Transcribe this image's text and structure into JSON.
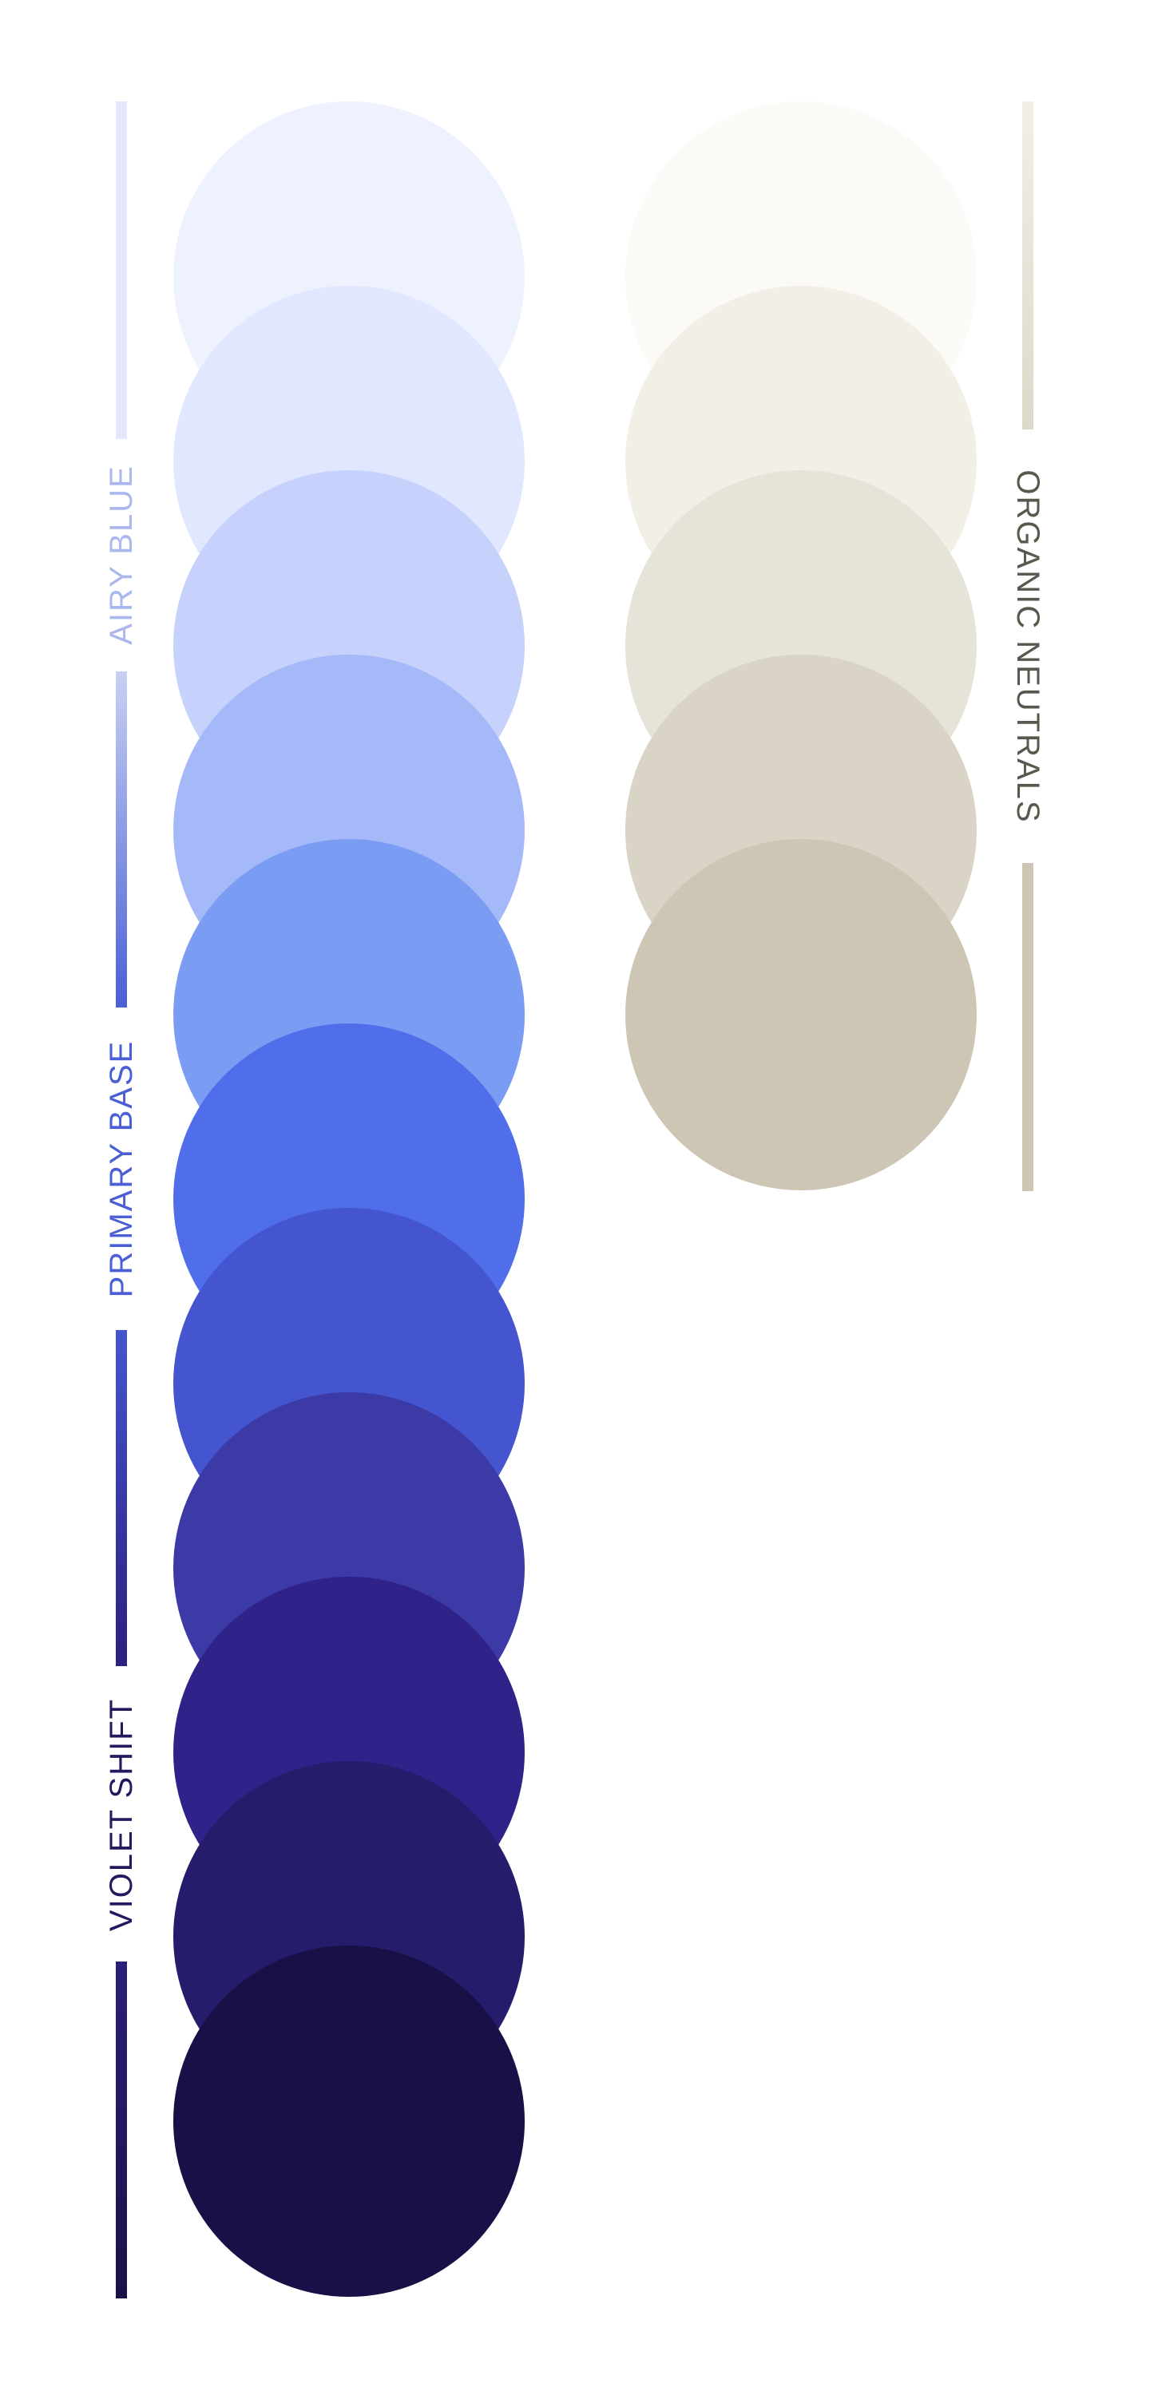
{
  "groups": {
    "airy_blue": {
      "label": "AIRY BLUE",
      "label_color": "#aab8ee"
    },
    "primary_base": {
      "label": "PRIMARY BASE",
      "label_color": "#4a5fd6"
    },
    "violet_shift": {
      "label": "VIOLET SHIFT",
      "label_color": "#221a5e"
    },
    "organic_neutrals": {
      "label": "ORGANIC NEUTRALS",
      "label_color": "#5a574c"
    }
  },
  "blue_swatches": [
    {
      "color": "#eef2ff"
    },
    {
      "color": "#e0e7ff"
    },
    {
      "color": "#c6d2fb"
    },
    {
      "color": "#a5b9f8"
    },
    {
      "color": "#7b9cf3"
    },
    {
      "color": "#506ee9"
    },
    {
      "color": "#4555cf"
    },
    {
      "color": "#3b3aa6"
    },
    {
      "color": "#2f2288"
    },
    {
      "color": "#251c6c"
    },
    {
      "color": "#181046"
    }
  ],
  "neutral_swatches": [
    {
      "color": "#fbfaf7"
    },
    {
      "color": "#f2f0e6"
    },
    {
      "color": "#e6e3d8"
    },
    {
      "color": "#d9d4c5"
    },
    {
      "color": "#cdc6b5"
    }
  ]
}
